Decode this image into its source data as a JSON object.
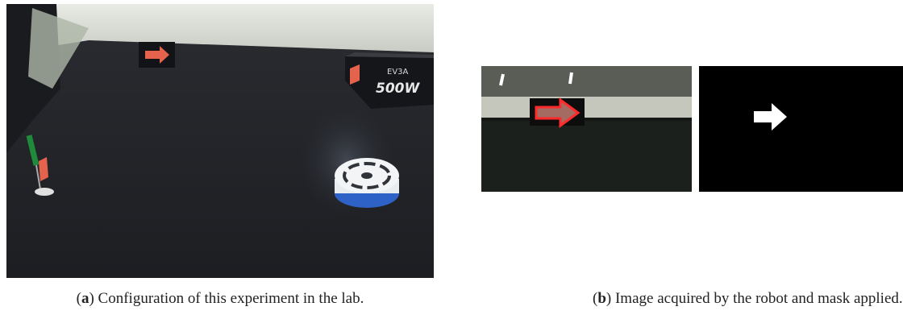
{
  "figure": {
    "panels": [
      {
        "label_parts": [
          "(",
          "a",
          ")"
        ],
        "caption": "Configuration of this experiment in the lab."
      },
      {
        "label_parts": [
          "(",
          "b",
          ")"
        ],
        "caption": "Image acquired by the robot and mask applied."
      }
    ],
    "photo_text": [
      "EV3A",
      "500W"
    ]
  }
}
